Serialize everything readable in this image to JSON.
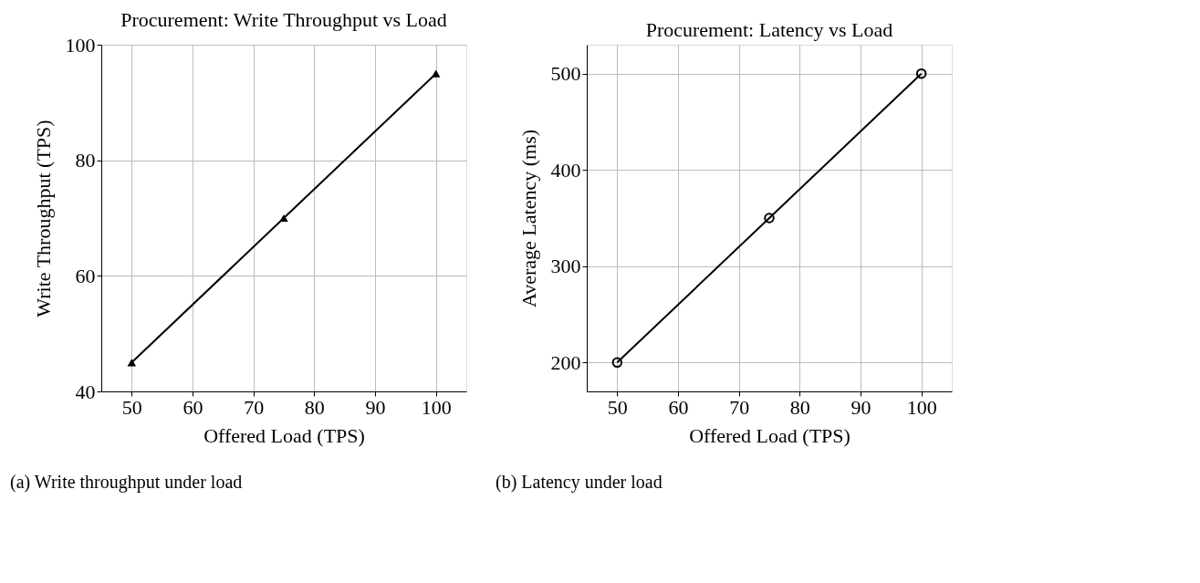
{
  "chart_data": [
    {
      "type": "line",
      "title": "Procurement: Write Throughput vs Load",
      "xlabel": "Offered Load (TPS)",
      "ylabel": "Write Throughput (TPS)",
      "x": [
        50,
        75,
        100
      ],
      "series": [
        {
          "color": "#000000",
          "values": [
            45,
            70,
            95
          ]
        }
      ],
      "xlim": [
        45,
        105
      ],
      "xticks": [
        50,
        60,
        70,
        80,
        90,
        100
      ],
      "ylim": [
        40,
        100
      ],
      "yticks": [
        40,
        60,
        80,
        100
      ],
      "grid": true,
      "marker": "triangle",
      "line_style": "solid",
      "annotations": [
        "(a) Write throughput under load"
      ]
    },
    {
      "type": "line",
      "title": "Procurement: Latency vs Load",
      "xlabel": "Offered Load (TPS)",
      "ylabel": "Average Latency (ms)",
      "x": [
        50,
        75,
        100
      ],
      "series": [
        {
          "color": "#000000",
          "values": [
            200,
            350,
            500
          ]
        }
      ],
      "xlim": [
        45,
        105
      ],
      "xticks": [
        50,
        60,
        70,
        80,
        90,
        100
      ],
      "ylim": [
        170,
        530
      ],
      "yticks": [
        200,
        300,
        400,
        500
      ],
      "grid": true,
      "marker": "circle",
      "line_style": "solid",
      "annotations": [
        "(b) Latency under load"
      ]
    }
  ]
}
